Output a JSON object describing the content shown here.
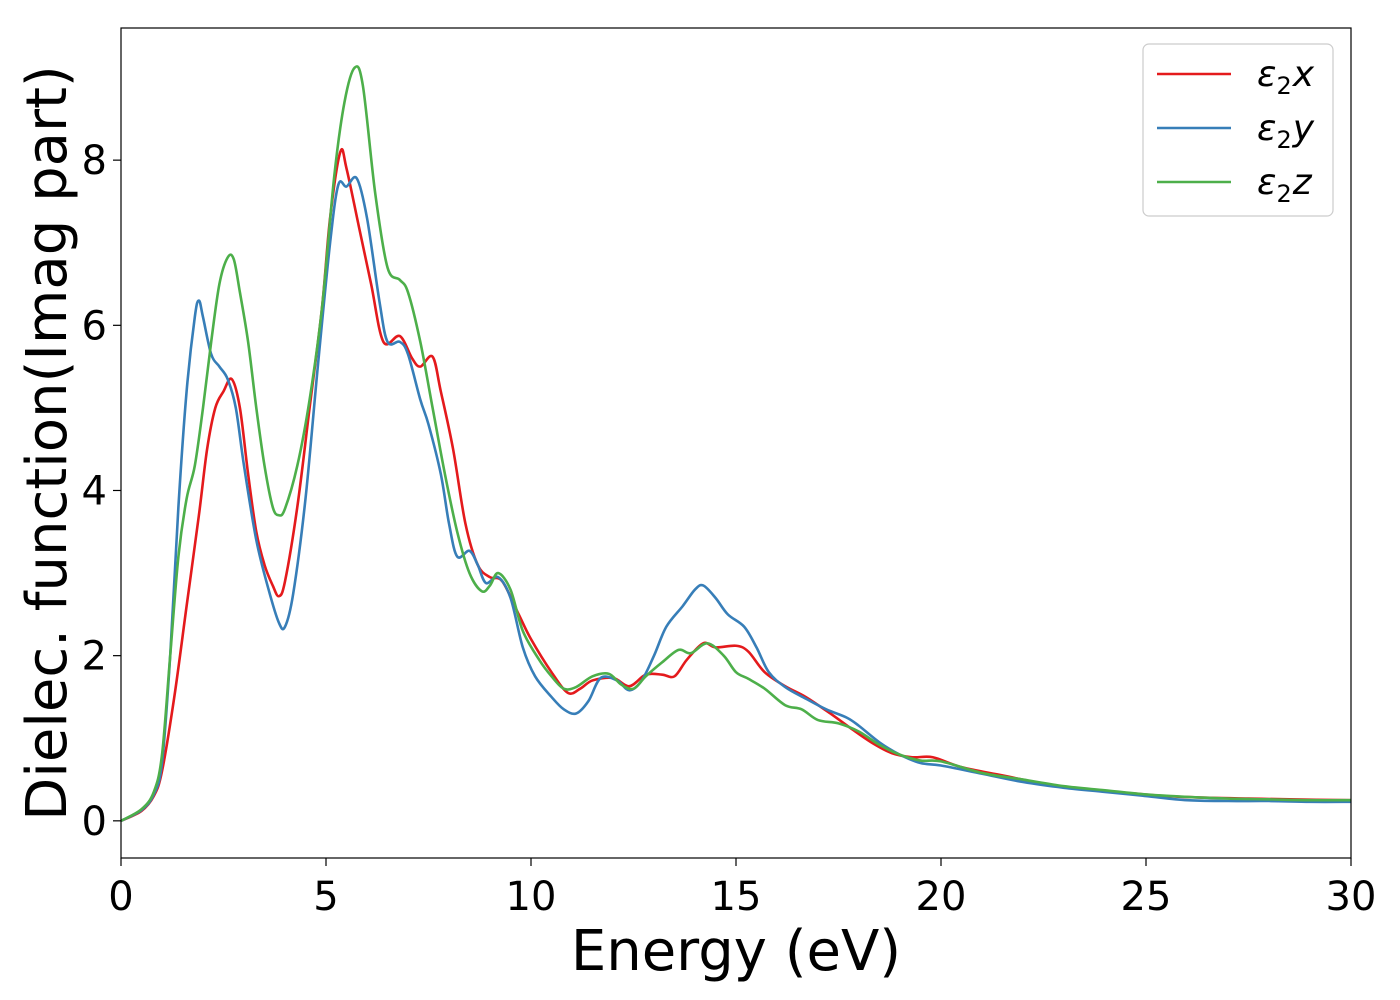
{
  "chart_data": {
    "type": "line",
    "title": "",
    "xlabel": "Energy (eV)",
    "ylabel": "Dielec. function(Imag part)",
    "xlim": [
      0,
      30
    ],
    "ylim": [
      -0.45,
      9.6
    ],
    "xticks": [
      0,
      5,
      10,
      15,
      20,
      25,
      30
    ],
    "yticks": [
      0,
      2,
      4,
      6,
      8
    ],
    "grid": false,
    "legend_position": "top-right",
    "series": [
      {
        "name_symbol": "ε",
        "name_sub": "2",
        "name_axis": "x",
        "color": "#e41a1c",
        "points": [
          [
            0,
            0
          ],
          [
            0.5,
            0.12
          ],
          [
            0.8,
            0.3
          ],
          [
            1,
            0.6
          ],
          [
            1.3,
            1.5
          ],
          [
            1.6,
            2.6
          ],
          [
            1.9,
            3.7
          ],
          [
            2.1,
            4.5
          ],
          [
            2.3,
            5.0
          ],
          [
            2.5,
            5.2
          ],
          [
            2.7,
            5.35
          ],
          [
            2.9,
            5.0
          ],
          [
            3.1,
            4.2
          ],
          [
            3.3,
            3.5
          ],
          [
            3.5,
            3.1
          ],
          [
            3.7,
            2.85
          ],
          [
            3.85,
            2.72
          ],
          [
            4.0,
            2.9
          ],
          [
            4.3,
            3.8
          ],
          [
            4.6,
            5.0
          ],
          [
            4.9,
            6.2
          ],
          [
            5.1,
            7.3
          ],
          [
            5.35,
            8.1
          ],
          [
            5.5,
            7.9
          ],
          [
            5.8,
            7.2
          ],
          [
            6.1,
            6.5
          ],
          [
            6.4,
            5.8
          ],
          [
            6.8,
            5.87
          ],
          [
            7.1,
            5.6
          ],
          [
            7.3,
            5.5
          ],
          [
            7.6,
            5.62
          ],
          [
            7.8,
            5.2
          ],
          [
            8.1,
            4.5
          ],
          [
            8.4,
            3.6
          ],
          [
            8.7,
            3.1
          ],
          [
            9.0,
            2.95
          ],
          [
            9.3,
            2.9
          ],
          [
            9.7,
            2.5
          ],
          [
            10.0,
            2.2
          ],
          [
            10.5,
            1.8
          ],
          [
            10.9,
            1.55
          ],
          [
            11.2,
            1.6
          ],
          [
            11.5,
            1.7
          ],
          [
            12.0,
            1.73
          ],
          [
            12.4,
            1.63
          ],
          [
            12.8,
            1.77
          ],
          [
            13.2,
            1.77
          ],
          [
            13.5,
            1.75
          ],
          [
            13.8,
            1.95
          ],
          [
            14.2,
            2.15
          ],
          [
            14.5,
            2.1
          ],
          [
            15.0,
            2.12
          ],
          [
            15.3,
            2.05
          ],
          [
            15.7,
            1.8
          ],
          [
            16.2,
            1.63
          ],
          [
            16.7,
            1.5
          ],
          [
            17.3,
            1.3
          ],
          [
            17.8,
            1.12
          ],
          [
            18.3,
            0.95
          ],
          [
            18.8,
            0.82
          ],
          [
            19.3,
            0.77
          ],
          [
            19.8,
            0.77
          ],
          [
            20.5,
            0.65
          ],
          [
            21.5,
            0.55
          ],
          [
            22.5,
            0.45
          ],
          [
            23.5,
            0.38
          ],
          [
            24.5,
            0.34
          ],
          [
            25.5,
            0.3
          ],
          [
            26.5,
            0.28
          ],
          [
            27.5,
            0.27
          ],
          [
            28.5,
            0.26
          ],
          [
            30,
            0.25
          ]
        ]
      },
      {
        "name_symbol": "ε",
        "name_sub": "2",
        "name_axis": "y",
        "color": "#377eb8",
        "points": [
          [
            0,
            0
          ],
          [
            0.5,
            0.13
          ],
          [
            0.8,
            0.32
          ],
          [
            1,
            0.7
          ],
          [
            1.2,
            2.0
          ],
          [
            1.4,
            3.8
          ],
          [
            1.6,
            5.2
          ],
          [
            1.8,
            6.1
          ],
          [
            1.9,
            6.3
          ],
          [
            2.0,
            6.1
          ],
          [
            2.2,
            5.65
          ],
          [
            2.4,
            5.5
          ],
          [
            2.6,
            5.35
          ],
          [
            2.8,
            5.0
          ],
          [
            3.0,
            4.3
          ],
          [
            3.3,
            3.4
          ],
          [
            3.6,
            2.8
          ],
          [
            3.85,
            2.4
          ],
          [
            4.0,
            2.35
          ],
          [
            4.2,
            2.75
          ],
          [
            4.5,
            3.9
          ],
          [
            4.8,
            5.5
          ],
          [
            5.1,
            7.0
          ],
          [
            5.3,
            7.7
          ],
          [
            5.5,
            7.68
          ],
          [
            5.75,
            7.78
          ],
          [
            6.0,
            7.3
          ],
          [
            6.3,
            6.3
          ],
          [
            6.5,
            5.8
          ],
          [
            6.8,
            5.8
          ],
          [
            7.0,
            5.65
          ],
          [
            7.3,
            5.1
          ],
          [
            7.5,
            4.8
          ],
          [
            7.8,
            4.2
          ],
          [
            8.0,
            3.6
          ],
          [
            8.2,
            3.2
          ],
          [
            8.5,
            3.27
          ],
          [
            8.7,
            3.1
          ],
          [
            8.9,
            2.88
          ],
          [
            9.2,
            2.95
          ],
          [
            9.5,
            2.7
          ],
          [
            9.8,
            2.1
          ],
          [
            10.1,
            1.75
          ],
          [
            10.5,
            1.5
          ],
          [
            10.8,
            1.35
          ],
          [
            11.1,
            1.3
          ],
          [
            11.4,
            1.45
          ],
          [
            11.7,
            1.73
          ],
          [
            12.1,
            1.7
          ],
          [
            12.4,
            1.58
          ],
          [
            12.7,
            1.7
          ],
          [
            13.0,
            2.0
          ],
          [
            13.3,
            2.35
          ],
          [
            13.7,
            2.6
          ],
          [
            14.0,
            2.8
          ],
          [
            14.2,
            2.85
          ],
          [
            14.5,
            2.7
          ],
          [
            14.8,
            2.5
          ],
          [
            15.2,
            2.35
          ],
          [
            15.5,
            2.1
          ],
          [
            15.8,
            1.8
          ],
          [
            16.2,
            1.62
          ],
          [
            16.7,
            1.48
          ],
          [
            17.2,
            1.35
          ],
          [
            17.7,
            1.25
          ],
          [
            18.0,
            1.15
          ],
          [
            18.5,
            0.95
          ],
          [
            19.0,
            0.8
          ],
          [
            19.5,
            0.7
          ],
          [
            20.0,
            0.67
          ],
          [
            21.0,
            0.57
          ],
          [
            22.0,
            0.47
          ],
          [
            23.0,
            0.4
          ],
          [
            24.0,
            0.35
          ],
          [
            25.0,
            0.3
          ],
          [
            26.0,
            0.25
          ],
          [
            27.0,
            0.24
          ],
          [
            28.0,
            0.24
          ],
          [
            29.0,
            0.23
          ],
          [
            30,
            0.23
          ]
        ]
      },
      {
        "name_symbol": "ε",
        "name_sub": "2",
        "name_axis": "z",
        "color": "#4daf4a",
        "points": [
          [
            0,
            0
          ],
          [
            0.5,
            0.14
          ],
          [
            0.8,
            0.35
          ],
          [
            1,
            0.8
          ],
          [
            1.2,
            2.0
          ],
          [
            1.4,
            3.2
          ],
          [
            1.6,
            3.9
          ],
          [
            1.8,
            4.3
          ],
          [
            2.0,
            5.0
          ],
          [
            2.2,
            5.8
          ],
          [
            2.4,
            6.5
          ],
          [
            2.6,
            6.82
          ],
          [
            2.75,
            6.8
          ],
          [
            2.9,
            6.4
          ],
          [
            3.1,
            5.8
          ],
          [
            3.3,
            5.0
          ],
          [
            3.5,
            4.3
          ],
          [
            3.7,
            3.8
          ],
          [
            3.85,
            3.7
          ],
          [
            4.0,
            3.78
          ],
          [
            4.3,
            4.3
          ],
          [
            4.6,
            5.1
          ],
          [
            4.9,
            6.2
          ],
          [
            5.2,
            7.8
          ],
          [
            5.45,
            8.7
          ],
          [
            5.7,
            9.12
          ],
          [
            5.9,
            8.9
          ],
          [
            6.2,
            7.6
          ],
          [
            6.5,
            6.7
          ],
          [
            6.8,
            6.55
          ],
          [
            7.0,
            6.4
          ],
          [
            7.3,
            5.8
          ],
          [
            7.6,
            5.0
          ],
          [
            7.9,
            4.2
          ],
          [
            8.2,
            3.5
          ],
          [
            8.5,
            3.0
          ],
          [
            8.8,
            2.78
          ],
          [
            9.0,
            2.85
          ],
          [
            9.2,
            3.0
          ],
          [
            9.5,
            2.8
          ],
          [
            9.8,
            2.3
          ],
          [
            10.2,
            1.95
          ],
          [
            10.5,
            1.75
          ],
          [
            10.8,
            1.6
          ],
          [
            11.1,
            1.62
          ],
          [
            11.5,
            1.75
          ],
          [
            11.9,
            1.78
          ],
          [
            12.2,
            1.65
          ],
          [
            12.5,
            1.6
          ],
          [
            12.8,
            1.75
          ],
          [
            13.2,
            1.92
          ],
          [
            13.6,
            2.07
          ],
          [
            13.9,
            2.03
          ],
          [
            14.3,
            2.15
          ],
          [
            14.7,
            2.0
          ],
          [
            15.0,
            1.8
          ],
          [
            15.3,
            1.72
          ],
          [
            15.7,
            1.6
          ],
          [
            16.2,
            1.4
          ],
          [
            16.6,
            1.35
          ],
          [
            17.0,
            1.22
          ],
          [
            17.5,
            1.18
          ],
          [
            18.0,
            1.08
          ],
          [
            18.5,
            0.92
          ],
          [
            19.0,
            0.8
          ],
          [
            19.5,
            0.73
          ],
          [
            20.0,
            0.72
          ],
          [
            21.0,
            0.58
          ],
          [
            22.0,
            0.5
          ],
          [
            23.0,
            0.42
          ],
          [
            24.0,
            0.37
          ],
          [
            25.0,
            0.32
          ],
          [
            26.0,
            0.29
          ],
          [
            27.0,
            0.27
          ],
          [
            28.0,
            0.26
          ],
          [
            29.0,
            0.25
          ],
          [
            30,
            0.25
          ]
        ]
      }
    ]
  }
}
